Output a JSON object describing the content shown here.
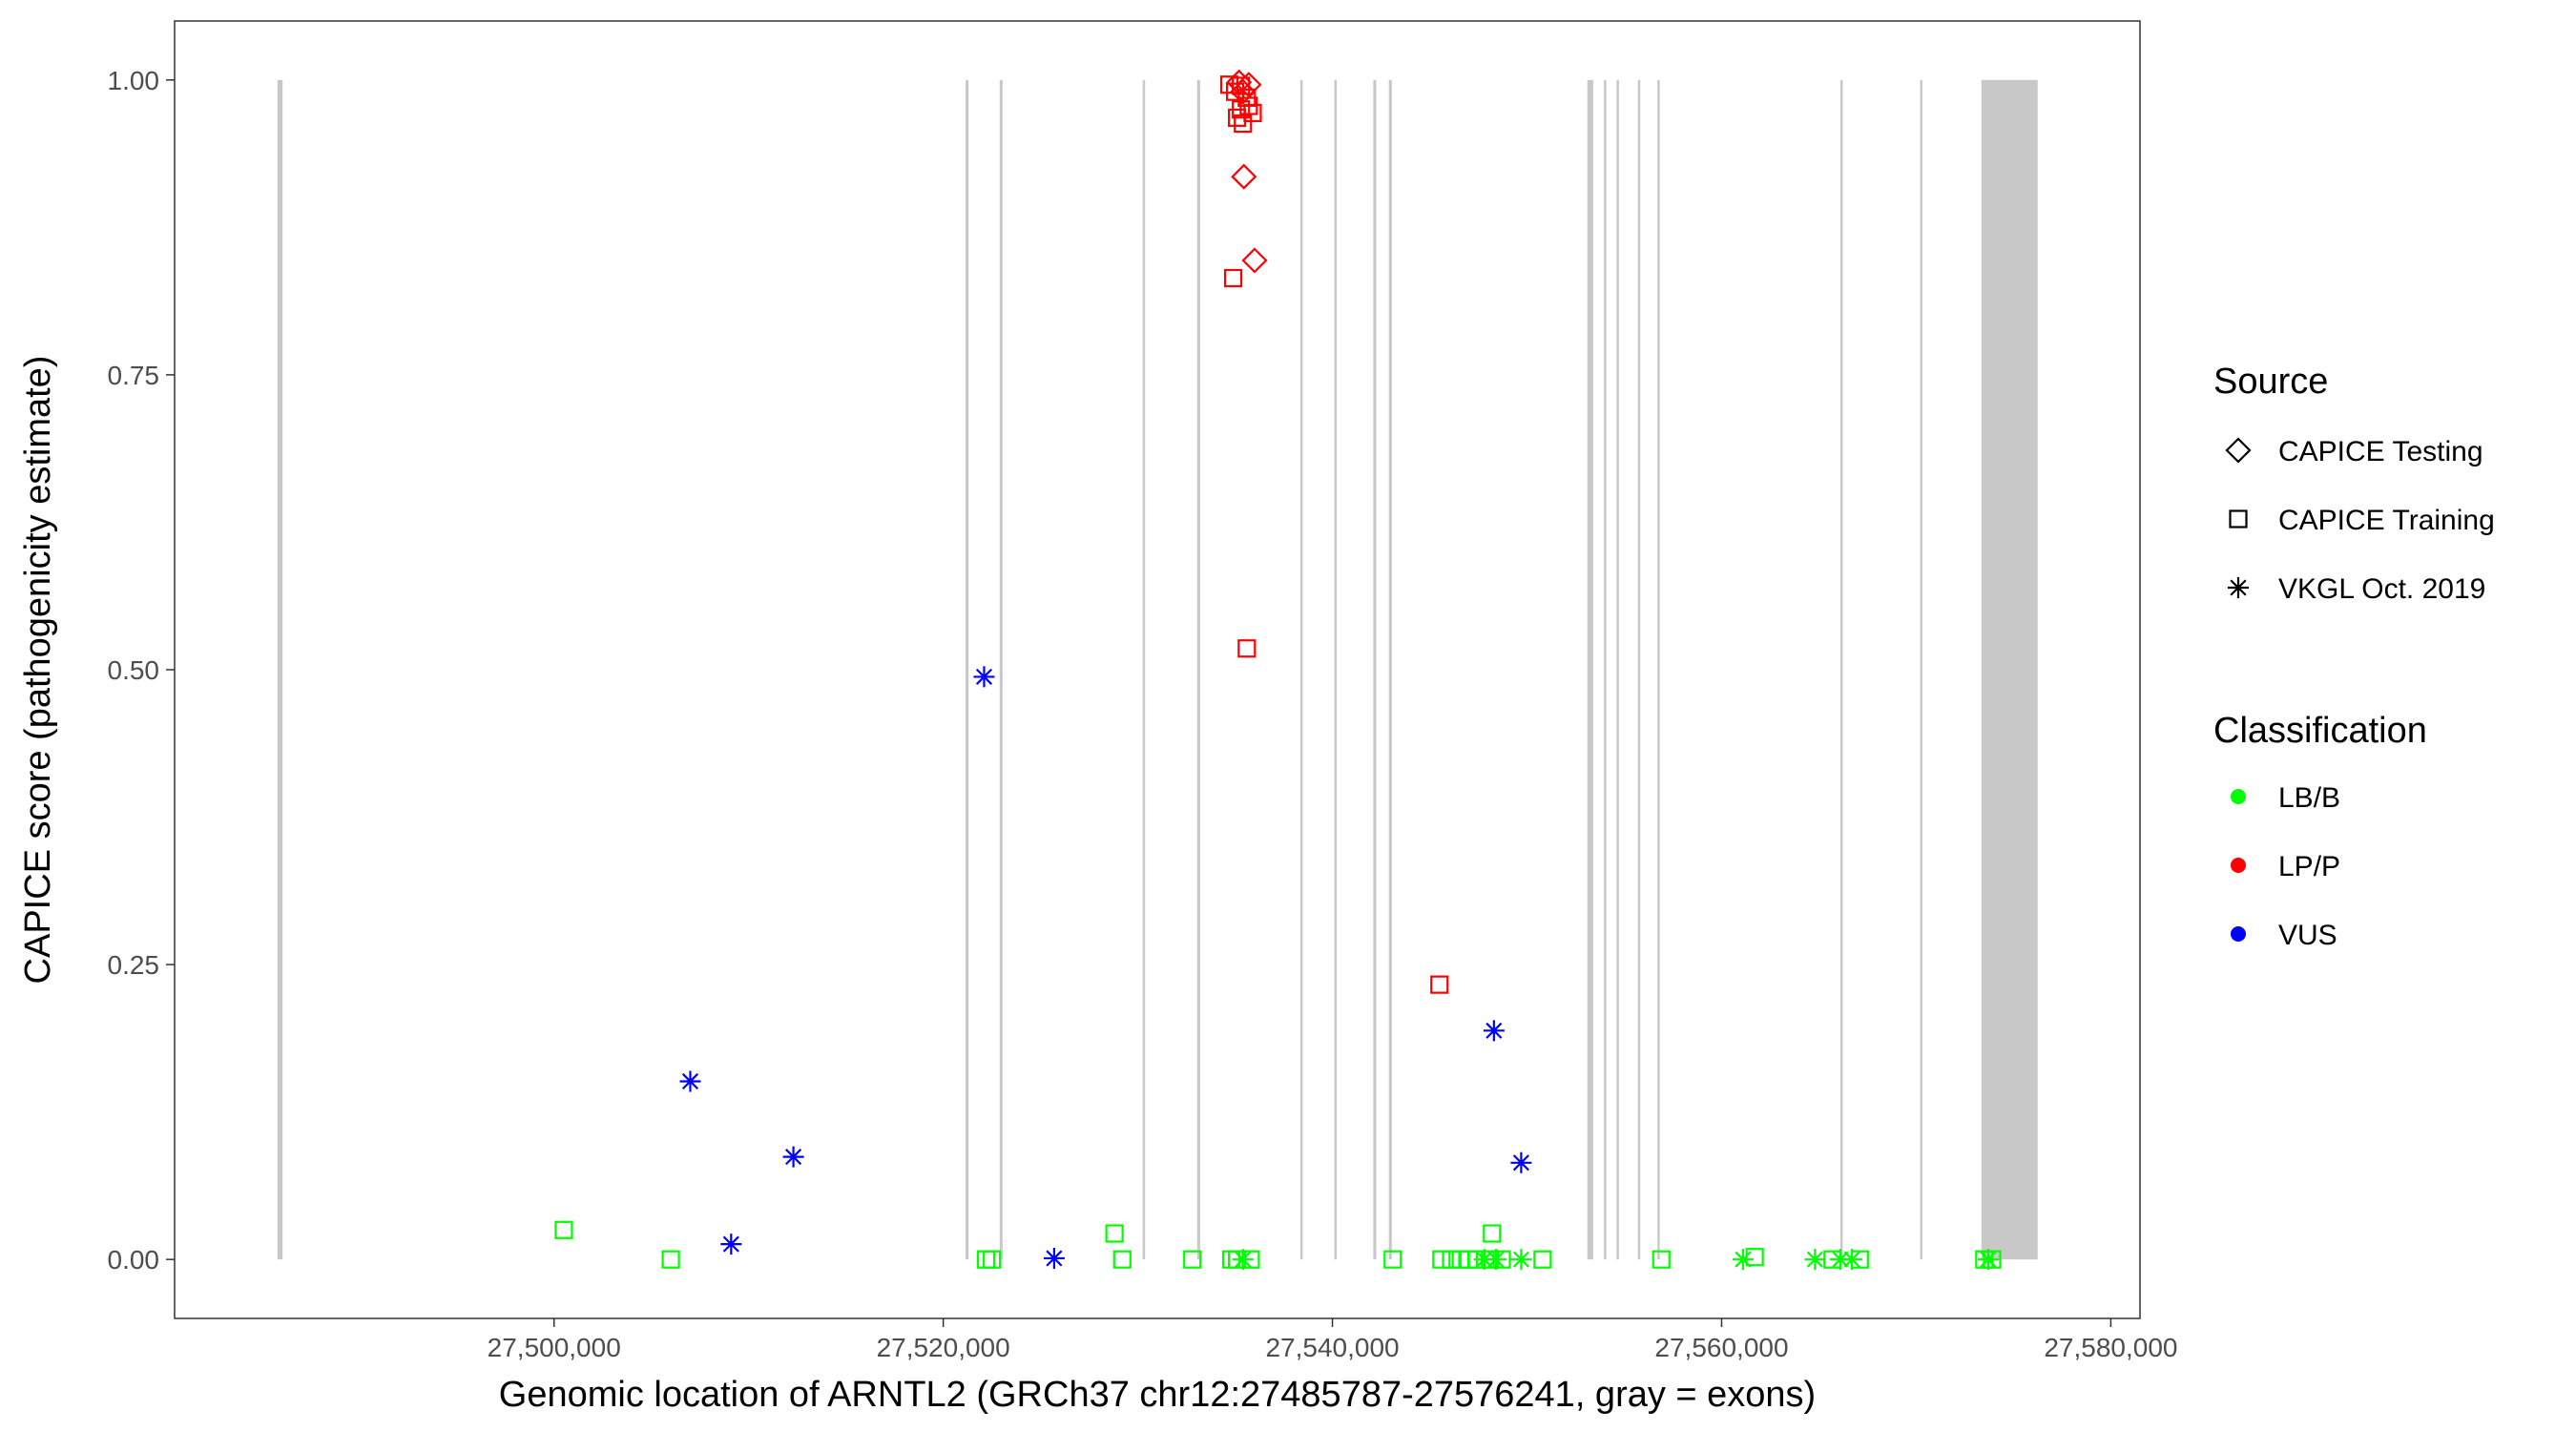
{
  "chart_data": {
    "type": "scatter",
    "xlabel": "Genomic location of ARNTL2 (GRCh37 chr12:27485787-27576241, gray = exons)",
    "ylabel": "CAPICE score (pathogenicity estimate)",
    "xlim": [
      27480500,
      27581500
    ],
    "ylim": [
      -0.05,
      1.05
    ],
    "x_ticks": [
      27500000,
      27520000,
      27540000,
      27560000,
      27580000
    ],
    "x_tick_labels": [
      "27,500,000",
      "27,520,000",
      "27,540,000",
      "27,560,000",
      "27,580,000"
    ],
    "y_ticks": [
      0,
      0.25,
      0.5,
      0.75,
      1
    ],
    "y_tick_labels": [
      "0.00",
      "0.25",
      "0.50",
      "0.75",
      "1.00"
    ],
    "grid": false,
    "exons": [
      [
        27485787,
        27486050
      ],
      [
        27521150,
        27521300
      ],
      [
        27522900,
        27523050
      ],
      [
        27530250,
        27530350
      ],
      [
        27533050,
        27533200
      ],
      [
        27538350,
        27538450
      ],
      [
        27540100,
        27540200
      ],
      [
        27542100,
        27542250
      ],
      [
        27542900,
        27543050
      ],
      [
        27553100,
        27553400
      ],
      [
        27553950,
        27554050
      ],
      [
        27554600,
        27554700
      ],
      [
        27555700,
        27555800
      ],
      [
        27556700,
        27556800
      ],
      [
        27566100,
        27566200
      ],
      [
        27570200,
        27570300
      ],
      [
        27573350,
        27576241
      ]
    ],
    "exon_color": "#c8c8c8",
    "legend": {
      "position": "right",
      "source_title": "Source",
      "source_entries": [
        {
          "label": "CAPICE Testing",
          "shape": "diamond"
        },
        {
          "label": "CAPICE Training",
          "shape": "square"
        },
        {
          "label": "VKGL Oct. 2019",
          "shape": "asterisk"
        }
      ],
      "class_title": "Classification",
      "class_entries": [
        {
          "label": "LB/B",
          "color": "#00ff00"
        },
        {
          "label": "LP/P",
          "color": "#ff0000"
        },
        {
          "label": "VUS",
          "color": "#0000ff"
        }
      ]
    },
    "series": [
      {
        "name": "LP/P",
        "color": "#ff0000",
        "points": [
          {
            "x": 27535200,
            "y": 0.998,
            "shape": "diamond"
          },
          {
            "x": 27535700,
            "y": 0.996,
            "shape": "diamond"
          },
          {
            "x": 27535400,
            "y": 0.99,
            "shape": "diamond"
          },
          {
            "x": 27535450,
            "y": 0.918,
            "shape": "diamond"
          },
          {
            "x": 27536000,
            "y": 0.847,
            "shape": "diamond"
          },
          {
            "x": 27534700,
            "y": 0.996,
            "shape": "square"
          },
          {
            "x": 27535300,
            "y": 0.995,
            "shape": "square"
          },
          {
            "x": 27535000,
            "y": 0.99,
            "shape": "square"
          },
          {
            "x": 27535600,
            "y": 0.985,
            "shape": "square"
          },
          {
            "x": 27535700,
            "y": 0.978,
            "shape": "square"
          },
          {
            "x": 27535300,
            "y": 0.975,
            "shape": "square"
          },
          {
            "x": 27535900,
            "y": 0.972,
            "shape": "square"
          },
          {
            "x": 27535100,
            "y": 0.968,
            "shape": "square"
          },
          {
            "x": 27535400,
            "y": 0.963,
            "shape": "square"
          },
          {
            "x": 27534900,
            "y": 0.832,
            "shape": "square"
          },
          {
            "x": 27535600,
            "y": 0.518,
            "shape": "square"
          },
          {
            "x": 27545500,
            "y": 0.233,
            "shape": "square"
          }
        ]
      },
      {
        "name": "VUS",
        "color": "#0000ff",
        "points": [
          {
            "x": 27522100,
            "y": 0.494,
            "shape": "asterisk"
          },
          {
            "x": 27548300,
            "y": 0.194,
            "shape": "asterisk"
          },
          {
            "x": 27507000,
            "y": 0.151,
            "shape": "asterisk"
          },
          {
            "x": 27512300,
            "y": 0.087,
            "shape": "asterisk"
          },
          {
            "x": 27549700,
            "y": 0.082,
            "shape": "asterisk"
          },
          {
            "x": 27509100,
            "y": 0.013,
            "shape": "asterisk"
          },
          {
            "x": 27525700,
            "y": 0.001,
            "shape": "asterisk"
          }
        ]
      },
      {
        "name": "LB/B",
        "color": "#00ff00",
        "points": [
          {
            "x": 27500500,
            "y": 0.025,
            "shape": "square"
          },
          {
            "x": 27506000,
            "y": 0.0,
            "shape": "square"
          },
          {
            "x": 27528800,
            "y": 0.022,
            "shape": "square"
          },
          {
            "x": 27548200,
            "y": 0.022,
            "shape": "square"
          },
          {
            "x": 27522200,
            "y": 0.0,
            "shape": "square"
          },
          {
            "x": 27522500,
            "y": 0.0,
            "shape": "square"
          },
          {
            "x": 27529200,
            "y": 0.0,
            "shape": "square"
          },
          {
            "x": 27532800,
            "y": 0.0,
            "shape": "square"
          },
          {
            "x": 27534800,
            "y": 0.0,
            "shape": "square"
          },
          {
            "x": 27535100,
            "y": 0.0,
            "shape": "square"
          },
          {
            "x": 27535400,
            "y": 0.0,
            "shape": "asterisk"
          },
          {
            "x": 27535800,
            "y": 0.0,
            "shape": "square"
          },
          {
            "x": 27543100,
            "y": 0.0,
            "shape": "square"
          },
          {
            "x": 27545600,
            "y": 0.0,
            "shape": "square"
          },
          {
            "x": 27546100,
            "y": 0.0,
            "shape": "square"
          },
          {
            "x": 27546600,
            "y": 0.0,
            "shape": "square"
          },
          {
            "x": 27547000,
            "y": 0.0,
            "shape": "square"
          },
          {
            "x": 27547400,
            "y": 0.0,
            "shape": "square"
          },
          {
            "x": 27547800,
            "y": 0.0,
            "shape": "asterisk"
          },
          {
            "x": 27548100,
            "y": 0.0,
            "shape": "square"
          },
          {
            "x": 27548400,
            "y": 0.0,
            "shape": "asterisk"
          },
          {
            "x": 27548700,
            "y": 0.0,
            "shape": "square"
          },
          {
            "x": 27549700,
            "y": 0.0,
            "shape": "asterisk"
          },
          {
            "x": 27550800,
            "y": 0.0,
            "shape": "square"
          },
          {
            "x": 27556900,
            "y": 0.0,
            "shape": "square"
          },
          {
            "x": 27561100,
            "y": 0.0,
            "shape": "asterisk"
          },
          {
            "x": 27561700,
            "y": 0.002,
            "shape": "square"
          },
          {
            "x": 27564800,
            "y": 0.0,
            "shape": "asterisk"
          },
          {
            "x": 27565700,
            "y": 0.0,
            "shape": "square"
          },
          {
            "x": 27566100,
            "y": 0.0,
            "shape": "asterisk"
          },
          {
            "x": 27566700,
            "y": 0.0,
            "shape": "asterisk"
          },
          {
            "x": 27567100,
            "y": 0.0,
            "shape": "square"
          },
          {
            "x": 27573500,
            "y": 0.0,
            "shape": "square"
          },
          {
            "x": 27573700,
            "y": 0.0,
            "shape": "asterisk"
          },
          {
            "x": 27573900,
            "y": 0.0,
            "shape": "square"
          }
        ]
      }
    ]
  }
}
